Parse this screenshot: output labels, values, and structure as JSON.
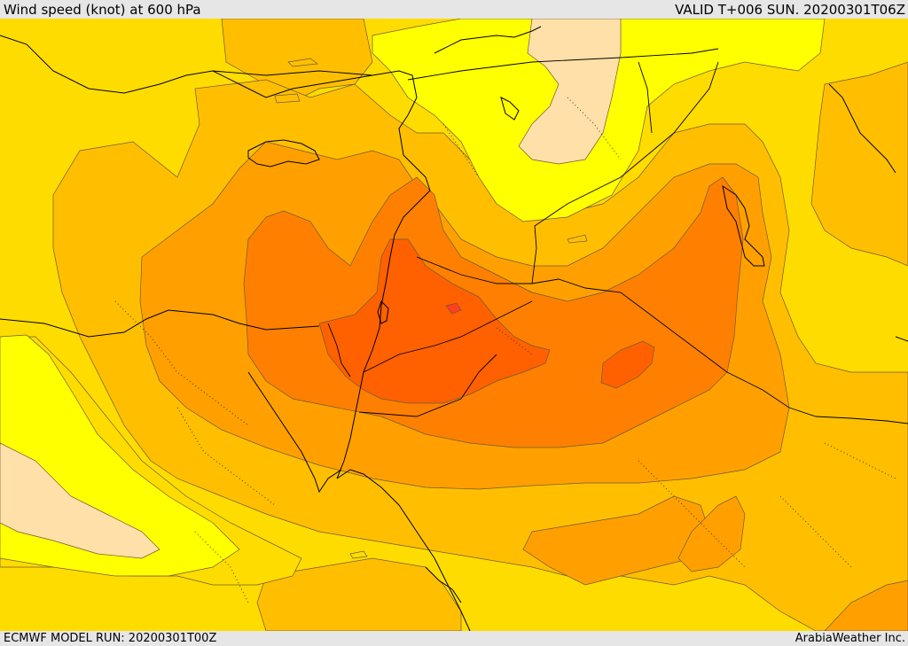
{
  "header": {
    "title": "Wind speed (knot) at 600 hPa",
    "valid": "VALID T+006 SUN. 20200301T06Z"
  },
  "footer": {
    "model_run": "ECMWF MODEL RUN: 20200301T00Z",
    "credit": "ArabiaWeather Inc."
  },
  "map": {
    "field": "wind speed",
    "level": "600 hPa",
    "units": "knot",
    "palette": {
      "lightest": "#ffe0a8",
      "light_yellow": "#ffff00",
      "yellow": "#ffdc00",
      "light_orange": "#ffbf00",
      "orange": "#ffa000",
      "dark_orange": "#ff8000",
      "red_orange": "#ff6000",
      "red": "#ff4020"
    },
    "line_colors": {
      "contour": "#6e5a3c",
      "coastline": "#000000",
      "border": "#000000"
    }
  }
}
